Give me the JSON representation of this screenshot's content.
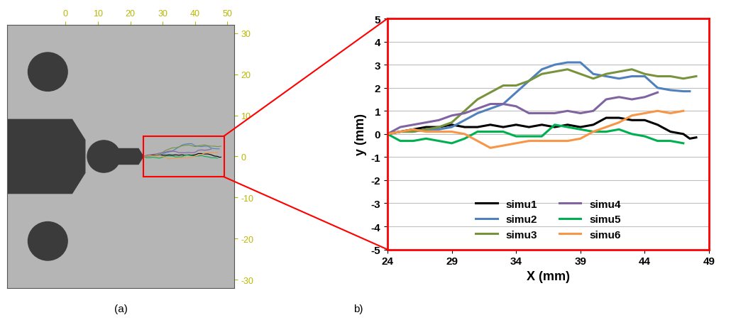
{
  "chart_data": [
    {
      "type": "photo",
      "title": "(a)",
      "xlim": [
        -18,
        52
      ],
      "ylim": [
        -32,
        32
      ],
      "xticks": [
        0,
        10,
        20,
        30,
        40,
        50
      ],
      "yticks": [
        -30,
        -20,
        -10,
        0,
        10,
        20,
        30
      ]
    },
    {
      "type": "line",
      "title": "b)",
      "x_label": "X (mm)",
      "y_label": "y (mm)",
      "xlim": [
        24,
        49
      ],
      "ylim": [
        -5,
        5
      ],
      "xticks": [
        24,
        29,
        34,
        39,
        44,
        49
      ],
      "yticks": [
        -5,
        -4,
        -3,
        -2,
        -1,
        0,
        1,
        2,
        3,
        4,
        5
      ],
      "grid": "y",
      "legend": "lower center",
      "series": [
        {
          "name": "simu1",
          "color": "#000000",
          "x": [
            24,
            25,
            26,
            27,
            28,
            29,
            30,
            31,
            32,
            33,
            34,
            35,
            36,
            37,
            38,
            39,
            40,
            41,
            42,
            43,
            44,
            45,
            46,
            47,
            47.5,
            48
          ],
          "values": [
            0,
            0.1,
            0.2,
            0.3,
            0.3,
            0.4,
            0.3,
            0.3,
            0.4,
            0.3,
            0.4,
            0.3,
            0.4,
            0.3,
            0.4,
            0.3,
            0.4,
            0.7,
            0.7,
            0.6,
            0.6,
            0.4,
            0.1,
            0.0,
            -0.2,
            -0.15
          ]
        },
        {
          "name": "simu2",
          "color": "#4f81bd",
          "x": [
            24,
            25,
            26,
            27,
            28,
            29,
            30,
            31,
            32,
            33,
            34,
            35,
            36,
            37,
            38,
            39,
            40,
            41,
            42,
            43,
            44,
            45,
            46,
            47,
            47.5
          ],
          "values": [
            0,
            0.1,
            0.1,
            0.2,
            0.2,
            0.3,
            0.6,
            0.9,
            1.1,
            1.3,
            1.8,
            2.3,
            2.8,
            3.0,
            3.1,
            3.1,
            2.6,
            2.5,
            2.4,
            2.5,
            2.5,
            2.0,
            1.9,
            1.85,
            1.85
          ]
        },
        {
          "name": "simu3",
          "color": "#77933c",
          "x": [
            24,
            25,
            26,
            27,
            28,
            29,
            30,
            31,
            32,
            33,
            34,
            35,
            36,
            37,
            38,
            39,
            40,
            41,
            42,
            43,
            44,
            45,
            46,
            47,
            48
          ],
          "values": [
            0,
            0.1,
            0.1,
            0.2,
            0.3,
            0.5,
            1.0,
            1.5,
            1.8,
            2.1,
            2.1,
            2.3,
            2.6,
            2.7,
            2.8,
            2.6,
            2.4,
            2.6,
            2.7,
            2.8,
            2.6,
            2.5,
            2.5,
            2.4,
            2.5
          ]
        },
        {
          "name": "simu4",
          "color": "#8064a2",
          "x": [
            24,
            25,
            26,
            27,
            28,
            29,
            30,
            31,
            32,
            33,
            34,
            35,
            36,
            37,
            38,
            39,
            40,
            41,
            42,
            43,
            44,
            45
          ],
          "values": [
            0,
            0.3,
            0.4,
            0.5,
            0.6,
            0.8,
            0.9,
            1.1,
            1.3,
            1.3,
            1.2,
            0.9,
            0.9,
            0.9,
            1.0,
            0.9,
            1.0,
            1.5,
            1.6,
            1.5,
            1.6,
            1.8
          ]
        },
        {
          "name": "simu5",
          "color": "#00b050",
          "x": [
            24,
            25,
            26,
            27,
            28,
            29,
            30,
            31,
            32,
            33,
            34,
            35,
            36,
            37,
            38,
            39,
            40,
            41,
            42,
            43,
            44,
            45,
            46,
            47
          ],
          "values": [
            0,
            -0.3,
            -0.3,
            -0.2,
            -0.3,
            -0.4,
            -0.2,
            0.1,
            0.1,
            0.1,
            -0.1,
            -0.1,
            -0.1,
            0.4,
            0.3,
            0.2,
            0.1,
            0.1,
            0.2,
            0.0,
            -0.1,
            -0.3,
            -0.3,
            -0.4
          ]
        },
        {
          "name": "simu6",
          "color": "#f79646",
          "x": [
            24,
            25,
            26,
            27,
            28,
            29,
            30,
            31,
            32,
            33,
            34,
            35,
            36,
            37,
            38,
            39,
            40,
            41,
            42,
            43,
            44,
            45,
            46,
            47
          ],
          "values": [
            0,
            0.1,
            0.2,
            0.1,
            0.1,
            0.1,
            0.0,
            -0.3,
            -0.6,
            -0.5,
            -0.4,
            -0.3,
            -0.3,
            -0.3,
            -0.3,
            -0.2,
            0.1,
            0.3,
            0.5,
            0.8,
            0.9,
            1.0,
            0.9,
            1.0
          ]
        }
      ]
    }
  ]
}
